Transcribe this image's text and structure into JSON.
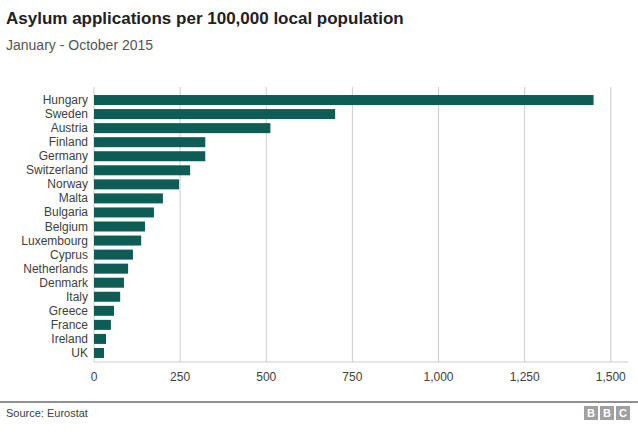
{
  "chart_data": {
    "type": "bar",
    "orientation": "horizontal",
    "title": "Asylum applications per 100,000 local population",
    "subtitle": "January - October 2015",
    "source": "Source: Eurostat",
    "logo": "BBC",
    "categories": [
      "Hungary",
      "Sweden",
      "Austria",
      "Finland",
      "Germany",
      "Switzerland",
      "Norway",
      "Malta",
      "Bulgaria",
      "Belgium",
      "Luxembourg",
      "Cyprus",
      "Netherlands",
      "Denmark",
      "Italy",
      "Greece",
      "France",
      "Ireland",
      "UK"
    ],
    "values": [
      1450,
      700,
      512,
      323,
      323,
      279,
      247,
      200,
      174,
      148,
      137,
      113,
      99,
      87,
      76,
      58,
      49,
      35,
      29
    ],
    "color": "#0d5c55",
    "xlim": [
      0,
      1550
    ],
    "xticks": [
      0,
      250,
      500,
      750,
      {
        "value": 1000,
        "label": "1,000"
      },
      {
        "value": 1250,
        "label": "1,250"
      },
      {
        "value": 1500,
        "label": "1,500"
      }
    ],
    "grid": true
  }
}
